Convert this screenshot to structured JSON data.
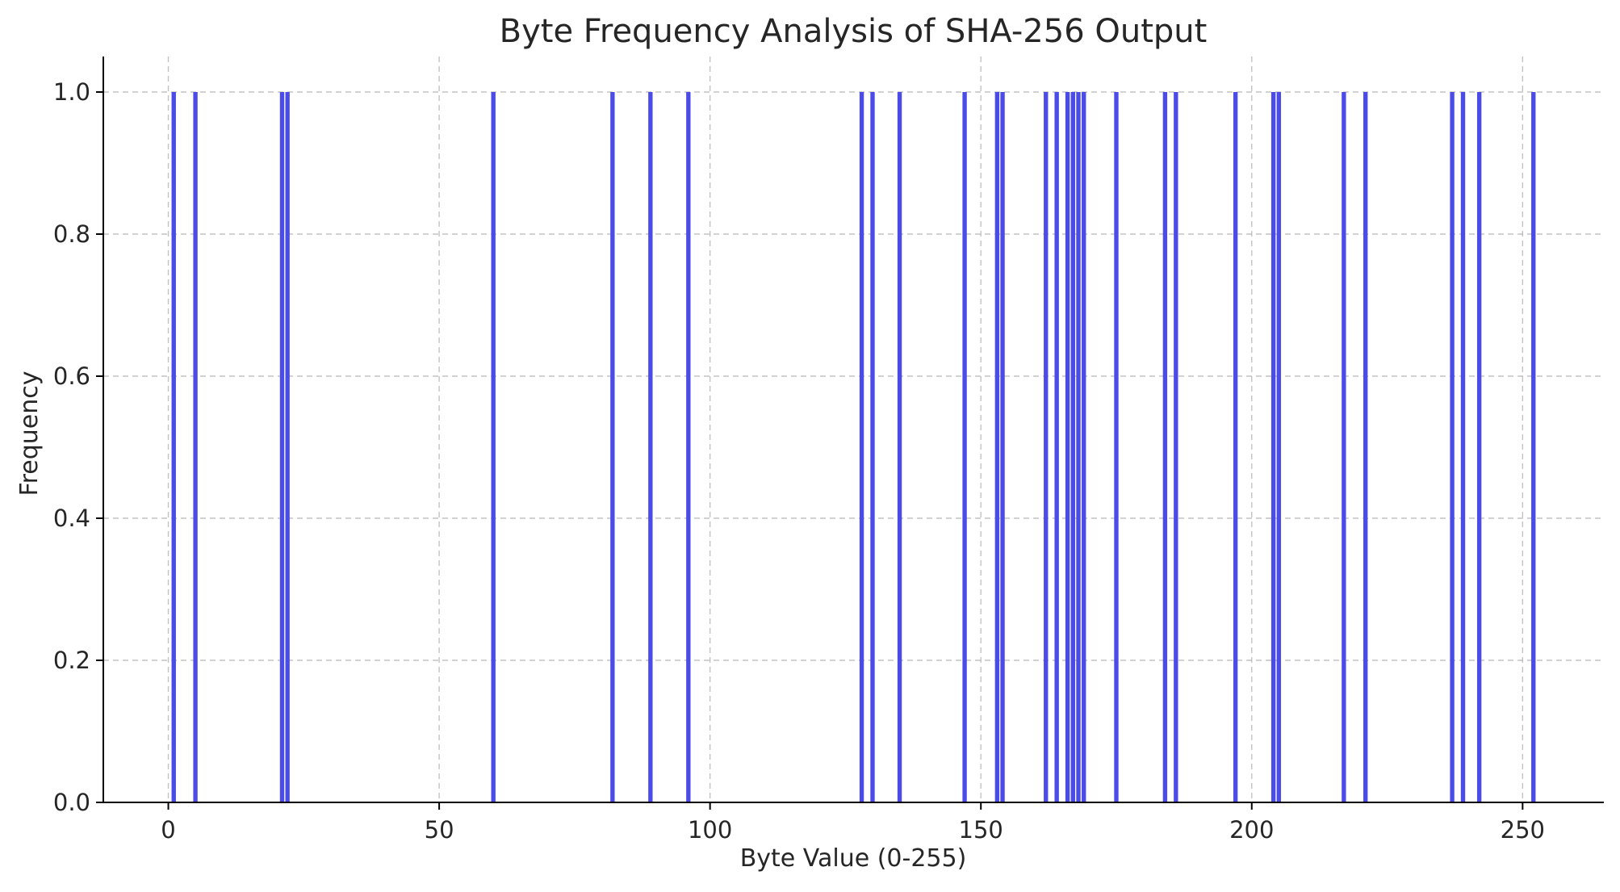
{
  "chart_data": {
    "type": "bar",
    "title": "Byte Frequency Analysis of SHA-256 Output",
    "xlabel": "Byte Value (0-255)",
    "ylabel": "Frequency",
    "xlim": [
      -12,
      265
    ],
    "ylim": [
      0,
      1.05
    ],
    "x_ticks": [
      0,
      50,
      100,
      150,
      200,
      250
    ],
    "x_tick_labels": [
      "0",
      "50",
      "100",
      "150",
      "200",
      "250"
    ],
    "y_ticks": [
      0.0,
      0.2,
      0.4,
      0.6,
      0.8,
      1.0
    ],
    "y_tick_labels": [
      "0.0",
      "0.2",
      "0.4",
      "0.6",
      "0.8",
      "1.0"
    ],
    "grid": true,
    "bar_color": "#4b4be8",
    "x": [
      1,
      5,
      21,
      22,
      60,
      82,
      89,
      96,
      128,
      130,
      135,
      147,
      153,
      154,
      162,
      164,
      166,
      167,
      168,
      169,
      175,
      184,
      186,
      197,
      204,
      205,
      217,
      221,
      237,
      239,
      242,
      252
    ],
    "values": [
      1,
      1,
      1,
      1,
      1,
      1,
      1,
      1,
      1,
      1,
      1,
      1,
      1,
      1,
      1,
      1,
      1,
      1,
      1,
      1,
      1,
      1,
      1,
      1,
      1,
      1,
      1,
      1,
      1,
      1,
      1,
      1
    ]
  }
}
